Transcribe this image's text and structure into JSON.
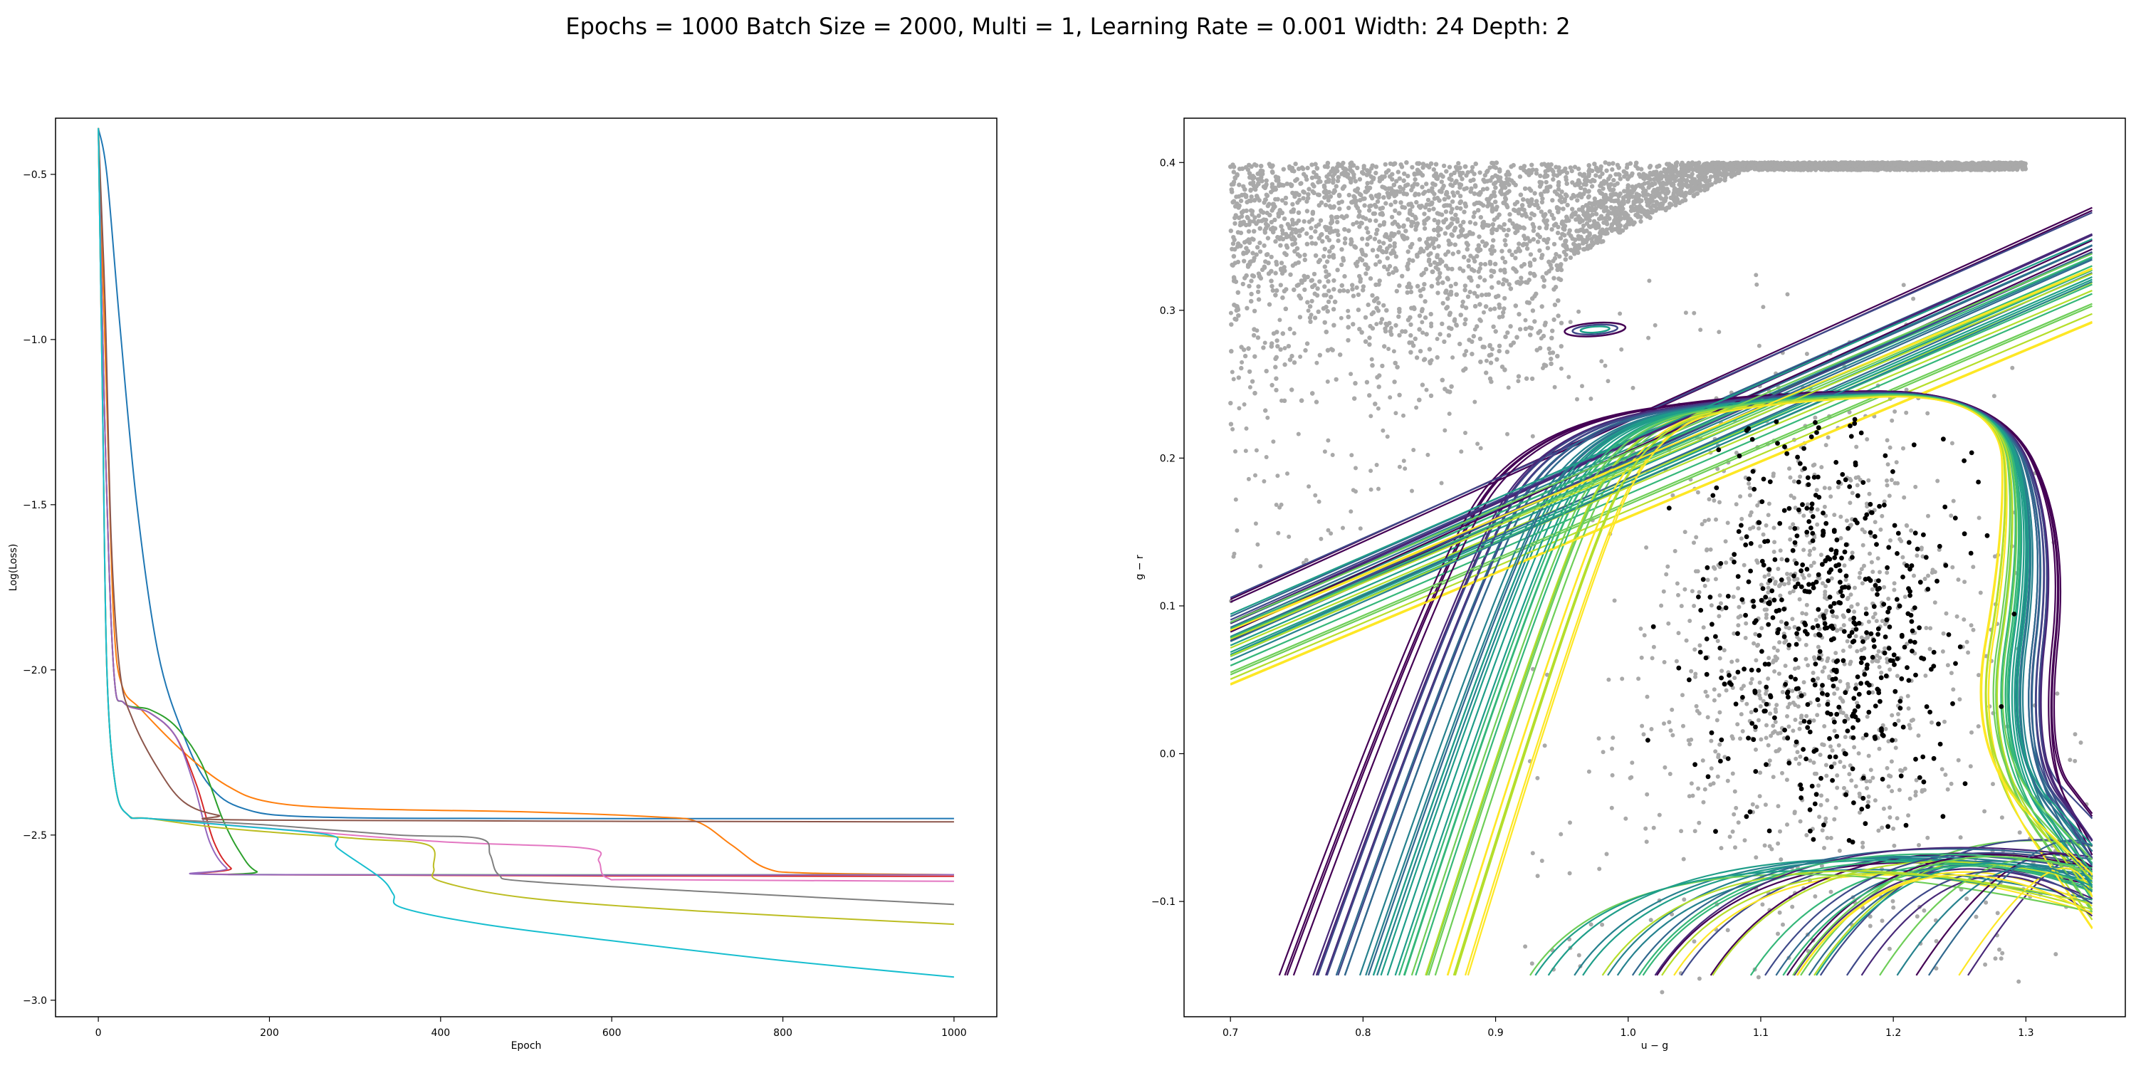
{
  "figure": {
    "suptitle": "Epochs = 1000 Batch Size = 2000, Multi = 1, Learning Rate = 0.001 Width: 24 Depth: 2"
  },
  "chart_data": [
    {
      "type": "line",
      "title": "",
      "xlabel": "Epoch",
      "ylabel": "Log(Loss)",
      "xlim": [
        -50,
        1050
      ],
      "ylim": [
        -3.05,
        -0.33
      ],
      "xticks": [
        0,
        200,
        400,
        600,
        800,
        1000
      ],
      "yticks": [
        -3.0,
        -2.5,
        -2.0,
        -1.5,
        -1.0,
        -0.5
      ],
      "grid": false,
      "series": [
        {
          "color": "#1f77b4",
          "points": [
            [
              0,
              -0.36
            ],
            [
              10,
              -0.5
            ],
            [
              25,
              -0.95
            ],
            [
              45,
              -1.5
            ],
            [
              70,
              -1.95
            ],
            [
              100,
              -2.2
            ],
            [
              130,
              -2.35
            ],
            [
              170,
              -2.42
            ],
            [
              250,
              -2.445
            ],
            [
              500,
              -2.45
            ],
            [
              1000,
              -2.45
            ]
          ]
        },
        {
          "color": "#ff7f0e",
          "points": [
            [
              0,
              -0.36
            ],
            [
              10,
              -1.2
            ],
            [
              18,
              -1.85
            ],
            [
              28,
              -2.05
            ],
            [
              50,
              -2.12
            ],
            [
              100,
              -2.25
            ],
            [
              150,
              -2.35
            ],
            [
              200,
              -2.4
            ],
            [
              300,
              -2.42
            ],
            [
              500,
              -2.43
            ],
            [
              650,
              -2.445
            ],
            [
              700,
              -2.46
            ],
            [
              740,
              -2.53
            ],
            [
              780,
              -2.6
            ],
            [
              830,
              -2.615
            ],
            [
              1000,
              -2.62
            ]
          ]
        },
        {
          "color": "#2ca02c",
          "points": [
            [
              0,
              -0.36
            ],
            [
              8,
              -1.3
            ],
            [
              18,
              -2.0
            ],
            [
              30,
              -2.1
            ],
            [
              60,
              -2.12
            ],
            [
              90,
              -2.17
            ],
            [
              120,
              -2.28
            ],
            [
              145,
              -2.45
            ],
            [
              165,
              -2.55
            ],
            [
              185,
              -2.61
            ],
            [
              220,
              -2.62
            ],
            [
              1000,
              -2.62
            ]
          ]
        },
        {
          "color": "#d62728",
          "points": [
            [
              0,
              -0.36
            ],
            [
              8,
              -1.3
            ],
            [
              18,
              -2.0
            ],
            [
              30,
              -2.1
            ],
            [
              60,
              -2.13
            ],
            [
              90,
              -2.2
            ],
            [
              115,
              -2.35
            ],
            [
              135,
              -2.52
            ],
            [
              155,
              -2.6
            ],
            [
              180,
              -2.62
            ],
            [
              1000,
              -2.625
            ]
          ]
        },
        {
          "color": "#9467bd",
          "points": [
            [
              0,
              -0.36
            ],
            [
              8,
              -1.3
            ],
            [
              18,
              -2.0
            ],
            [
              30,
              -2.1
            ],
            [
              60,
              -2.13
            ],
            [
              90,
              -2.2
            ],
            [
              112,
              -2.35
            ],
            [
              130,
              -2.52
            ],
            [
              150,
              -2.6
            ],
            [
              175,
              -2.62
            ],
            [
              1000,
              -2.62
            ]
          ]
        },
        {
          "color": "#8c564b",
          "points": [
            [
              0,
              -0.36
            ],
            [
              8,
              -0.9
            ],
            [
              15,
              -1.6
            ],
            [
              25,
              -2.0
            ],
            [
              40,
              -2.15
            ],
            [
              70,
              -2.3
            ],
            [
              100,
              -2.4
            ],
            [
              140,
              -2.44
            ],
            [
              200,
              -2.455
            ],
            [
              1000,
              -2.46
            ]
          ]
        },
        {
          "color": "#e377c2",
          "points": [
            [
              0,
              -0.36
            ],
            [
              5,
              -1.2
            ],
            [
              10,
              -2.0
            ],
            [
              20,
              -2.35
            ],
            [
              35,
              -2.44
            ],
            [
              60,
              -2.45
            ],
            [
              200,
              -2.48
            ],
            [
              400,
              -2.52
            ],
            [
              570,
              -2.54
            ],
            [
              585,
              -2.58
            ],
            [
              595,
              -2.63
            ],
            [
              650,
              -2.635
            ],
            [
              1000,
              -2.64
            ]
          ]
        },
        {
          "color": "#7f7f7f",
          "points": [
            [
              0,
              -0.36
            ],
            [
              5,
              -1.2
            ],
            [
              10,
              -2.0
            ],
            [
              20,
              -2.35
            ],
            [
              35,
              -2.44
            ],
            [
              60,
              -2.45
            ],
            [
              200,
              -2.47
            ],
            [
              350,
              -2.5
            ],
            [
              445,
              -2.51
            ],
            [
              458,
              -2.56
            ],
            [
              468,
              -2.62
            ],
            [
              500,
              -2.64
            ],
            [
              700,
              -2.67
            ],
            [
              1000,
              -2.71
            ]
          ]
        },
        {
          "color": "#bcbd22",
          "points": [
            [
              0,
              -0.36
            ],
            [
              5,
              -1.2
            ],
            [
              10,
              -2.0
            ],
            [
              20,
              -2.35
            ],
            [
              35,
              -2.44
            ],
            [
              60,
              -2.45
            ],
            [
              150,
              -2.48
            ],
            [
              300,
              -2.51
            ],
            [
              385,
              -2.53
            ],
            [
              392,
              -2.6
            ],
            [
              400,
              -2.64
            ],
            [
              500,
              -2.69
            ],
            [
              700,
              -2.73
            ],
            [
              1000,
              -2.77
            ]
          ]
        },
        {
          "color": "#17becf",
          "points": [
            [
              0,
              -0.36
            ],
            [
              5,
              -1.2
            ],
            [
              10,
              -2.0
            ],
            [
              20,
              -2.35
            ],
            [
              35,
              -2.44
            ],
            [
              60,
              -2.45
            ],
            [
              150,
              -2.47
            ],
            [
              270,
              -2.5
            ],
            [
              280,
              -2.54
            ],
            [
              330,
              -2.63
            ],
            [
              345,
              -2.68
            ],
            [
              355,
              -2.72
            ],
            [
              450,
              -2.77
            ],
            [
              600,
              -2.82
            ],
            [
              800,
              -2.88
            ],
            [
              1000,
              -2.93
            ]
          ]
        }
      ]
    },
    {
      "type": "scatter",
      "title": "",
      "xlabel": "u − g",
      "ylabel": "g − r",
      "xlim": [
        0.665,
        1.375
      ],
      "ylim": [
        -0.178,
        0.43
      ],
      "xticks": [
        0.7,
        0.8,
        0.9,
        1.0,
        1.1,
        1.2,
        1.3
      ],
      "yticks": [
        -0.1,
        0.0,
        0.1,
        0.2,
        0.3,
        0.4
      ],
      "ytick_labels": [
        "−0.1",
        "0.0",
        "0.1",
        "0.2",
        "0.3",
        "0.4"
      ],
      "grid": false,
      "background_points": {
        "color": "#a9a9a9"
      },
      "highlight_points": {
        "color": "#000000"
      },
      "contour_colormap": "viridis"
    }
  ]
}
